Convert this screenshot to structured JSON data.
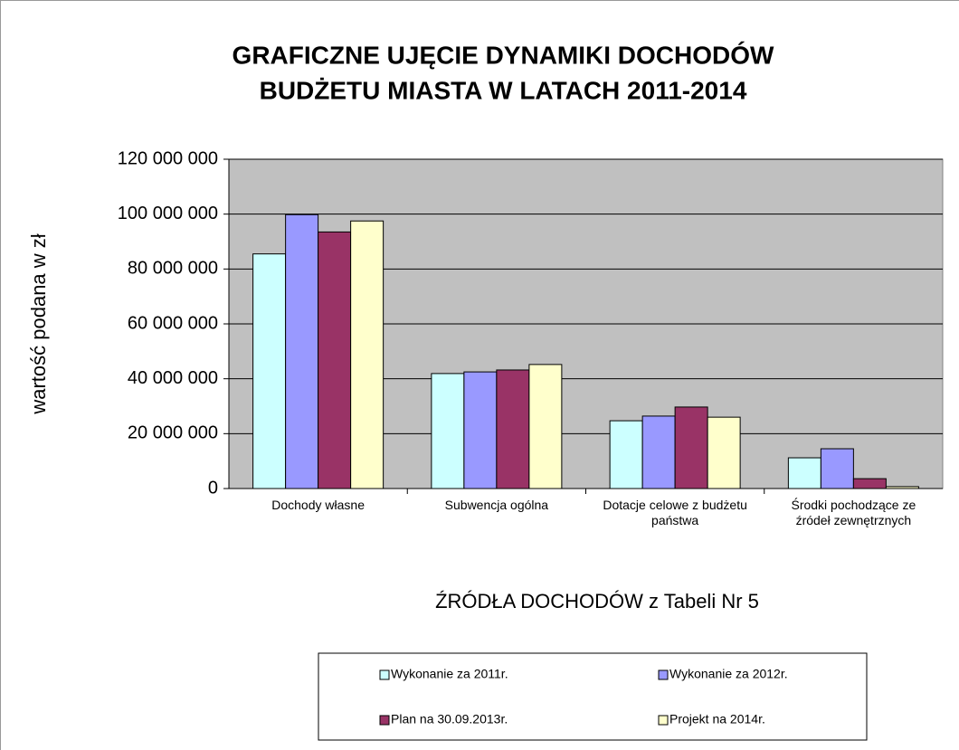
{
  "chart_data": {
    "type": "bar",
    "title": [
      "GRAFICZNE UJĘCIE DYNAMIKI DOCHODÓW",
      "BUDŻETU MIASTA W LATACH 2011-2014"
    ],
    "ylabel": "wartość podana w zł",
    "xlabel": "ŹRÓDŁA DOCHODÓW z Tabeli Nr 5",
    "categories": [
      "Dochody własne",
      "Subwencja ogólna",
      "Dotacje celowe z budżetu państwa",
      "Środki pochodzące ze źródeł zewnętrznych"
    ],
    "series": [
      {
        "name": "Wykonanie za 2011r.",
        "color": "#ccffff",
        "values": [
          85500000,
          41900000,
          24700000,
          11200000
        ]
      },
      {
        "name": "Wykonanie za 2012r.",
        "color": "#9999ff",
        "values": [
          99800000,
          42500000,
          26400000,
          14500000
        ]
      },
      {
        "name": "Plan na 30.09.2013r.",
        "color": "#993366",
        "values": [
          93500000,
          43200000,
          29700000,
          3600000
        ]
      },
      {
        "name": "Projekt na 2014r.",
        "color": "#ffffcc",
        "values": [
          97500000,
          45200000,
          26000000,
          700000
        ]
      }
    ],
    "ylim": [
      0,
      120000000
    ],
    "yticks": [
      0,
      {
        "value": 20000000,
        "label": "20 000 000"
      },
      {
        "value": 40000000,
        "label": "40 000 000"
      },
      {
        "value": 60000000,
        "label": "60 000 000"
      },
      {
        "value": 80000000,
        "label": "80 000 000"
      },
      {
        "value": 100000000,
        "label": "100 000 000"
      },
      {
        "value": 120000000,
        "label": "120 000 000"
      }
    ],
    "grid": true,
    "legend": "bottom"
  }
}
